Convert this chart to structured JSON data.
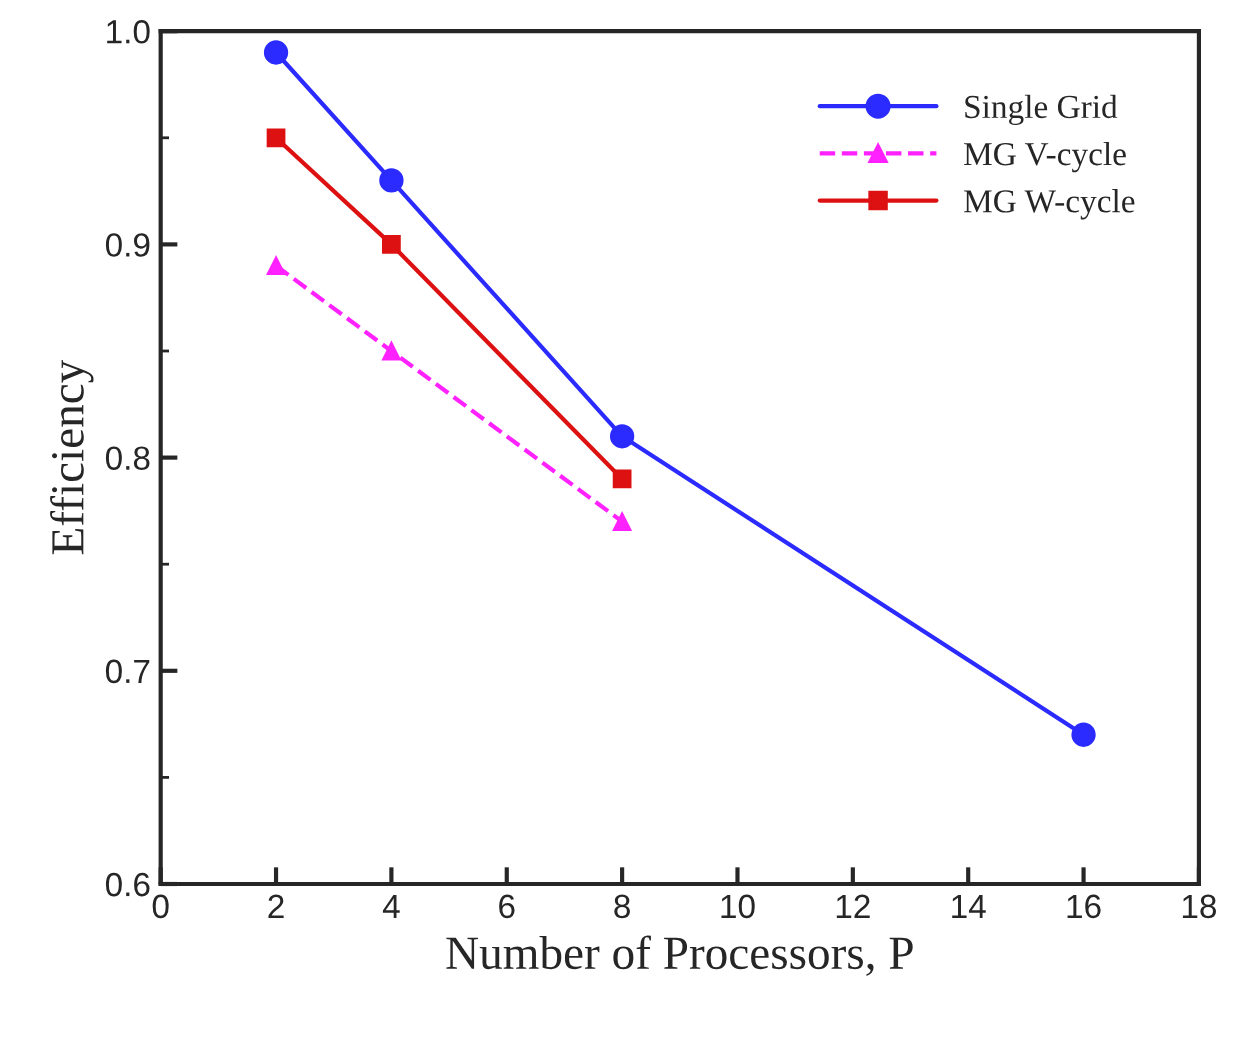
{
  "chart_data": {
    "type": "line",
    "xlabel": "Number of Processors, P",
    "ylabel": "Efficiency",
    "series": [
      {
        "name": "Single Grid",
        "color": "#2b2bff",
        "marker": "circle",
        "line_style": "solid",
        "x": [
          2,
          4,
          8,
          16
        ],
        "values": [
          0.99,
          0.93,
          0.81,
          0.67
        ]
      },
      {
        "name": "MG V-cycle",
        "color": "#ff22ff",
        "marker": "triangle",
        "line_style": "dashed",
        "x": [
          2,
          4,
          8
        ],
        "values": [
          0.89,
          0.85,
          0.77
        ]
      },
      {
        "name": "MG W-cycle",
        "color": "#dd1111",
        "marker": "square",
        "line_style": "solid",
        "x": [
          2,
          4,
          8
        ],
        "values": [
          0.95,
          0.9,
          0.79
        ]
      }
    ],
    "xlim": [
      0,
      18
    ],
    "xticks": [
      0,
      2,
      4,
      6,
      8,
      10,
      12,
      14,
      16,
      18
    ],
    "ylim": [
      0.6,
      1.0
    ],
    "yticks": [
      {
        "value": 0.6,
        "label": "0.6"
      },
      {
        "value": 0.7,
        "label": "0.7"
      },
      {
        "value": 0.8,
        "label": "0.8"
      },
      {
        "value": 0.9,
        "label": "0.9"
      },
      {
        "value": 1.0,
        "label": "1.0"
      }
    ],
    "grid": false,
    "legend": "top right"
  }
}
